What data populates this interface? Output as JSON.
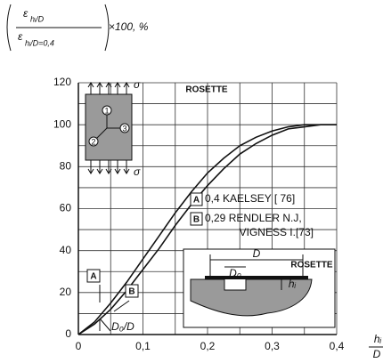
{
  "chart_data": {
    "type": "line",
    "ylabel": {
      "symbol": "ε",
      "numerator_sub": "hᵢ/D",
      "denominator_sub": "hᵢ/D=0,4",
      "suffix": "×100, %"
    },
    "xlabel": {
      "numerator": "hᵢ",
      "denominator": "D"
    },
    "xlim": [
      0,
      0.4
    ],
    "ylim": [
      0,
      120
    ],
    "xticks": [
      {
        "value": 0,
        "label": "0"
      },
      {
        "value": 0.1,
        "label": "0,1"
      },
      {
        "value": 0.2,
        "label": "0,2"
      },
      {
        "value": 0.3,
        "label": "0,3"
      },
      {
        "value": 0.4,
        "label": "0,4"
      }
    ],
    "yticks": [
      0,
      20,
      40,
      60,
      80,
      100,
      120
    ],
    "xminorticks": [
      0.05,
      0.15,
      0.25,
      0.35
    ],
    "yminorticks": [
      10,
      30,
      50,
      70,
      90,
      110
    ],
    "grid": true,
    "x": [
      0,
      0.025,
      0.05,
      0.075,
      0.1,
      0.125,
      0.15,
      0.175,
      0.2,
      0.225,
      0.25,
      0.275,
      0.3,
      0.325,
      0.35,
      0.375,
      0.4
    ],
    "series": [
      {
        "name": "A",
        "description": [
          "0,4 KAELSEY [ 76]"
        ],
        "color": "#111",
        "values": [
          0,
          6,
          15,
          25,
          36,
          47,
          58,
          68,
          77,
          84,
          90,
          94,
          97,
          99,
          100,
          100,
          100
        ]
      },
      {
        "name": "B",
        "description": [
          "0,29 RENDLER N.J,",
          "VIGNESS I.[73]"
        ],
        "color": "#111",
        "values": [
          0,
          5,
          12,
          21,
          31,
          41,
          52,
          62,
          71,
          79,
          86,
          91,
          95,
          98,
          99,
          100,
          100
        ]
      }
    ],
    "annotations": {
      "rosette_title": "ROSETTE",
      "sigma_top": "σ",
      "sigma_bottom": "σ",
      "gauge_1": "1",
      "gauge_2": "2",
      "gauge_3": "3",
      "d0_ratio": "D₀/D",
      "inset_d": "D",
      "inset_d0": "D₀",
      "inset_h": "hᵢ",
      "inset_rosette": "ROSETTE"
    }
  }
}
